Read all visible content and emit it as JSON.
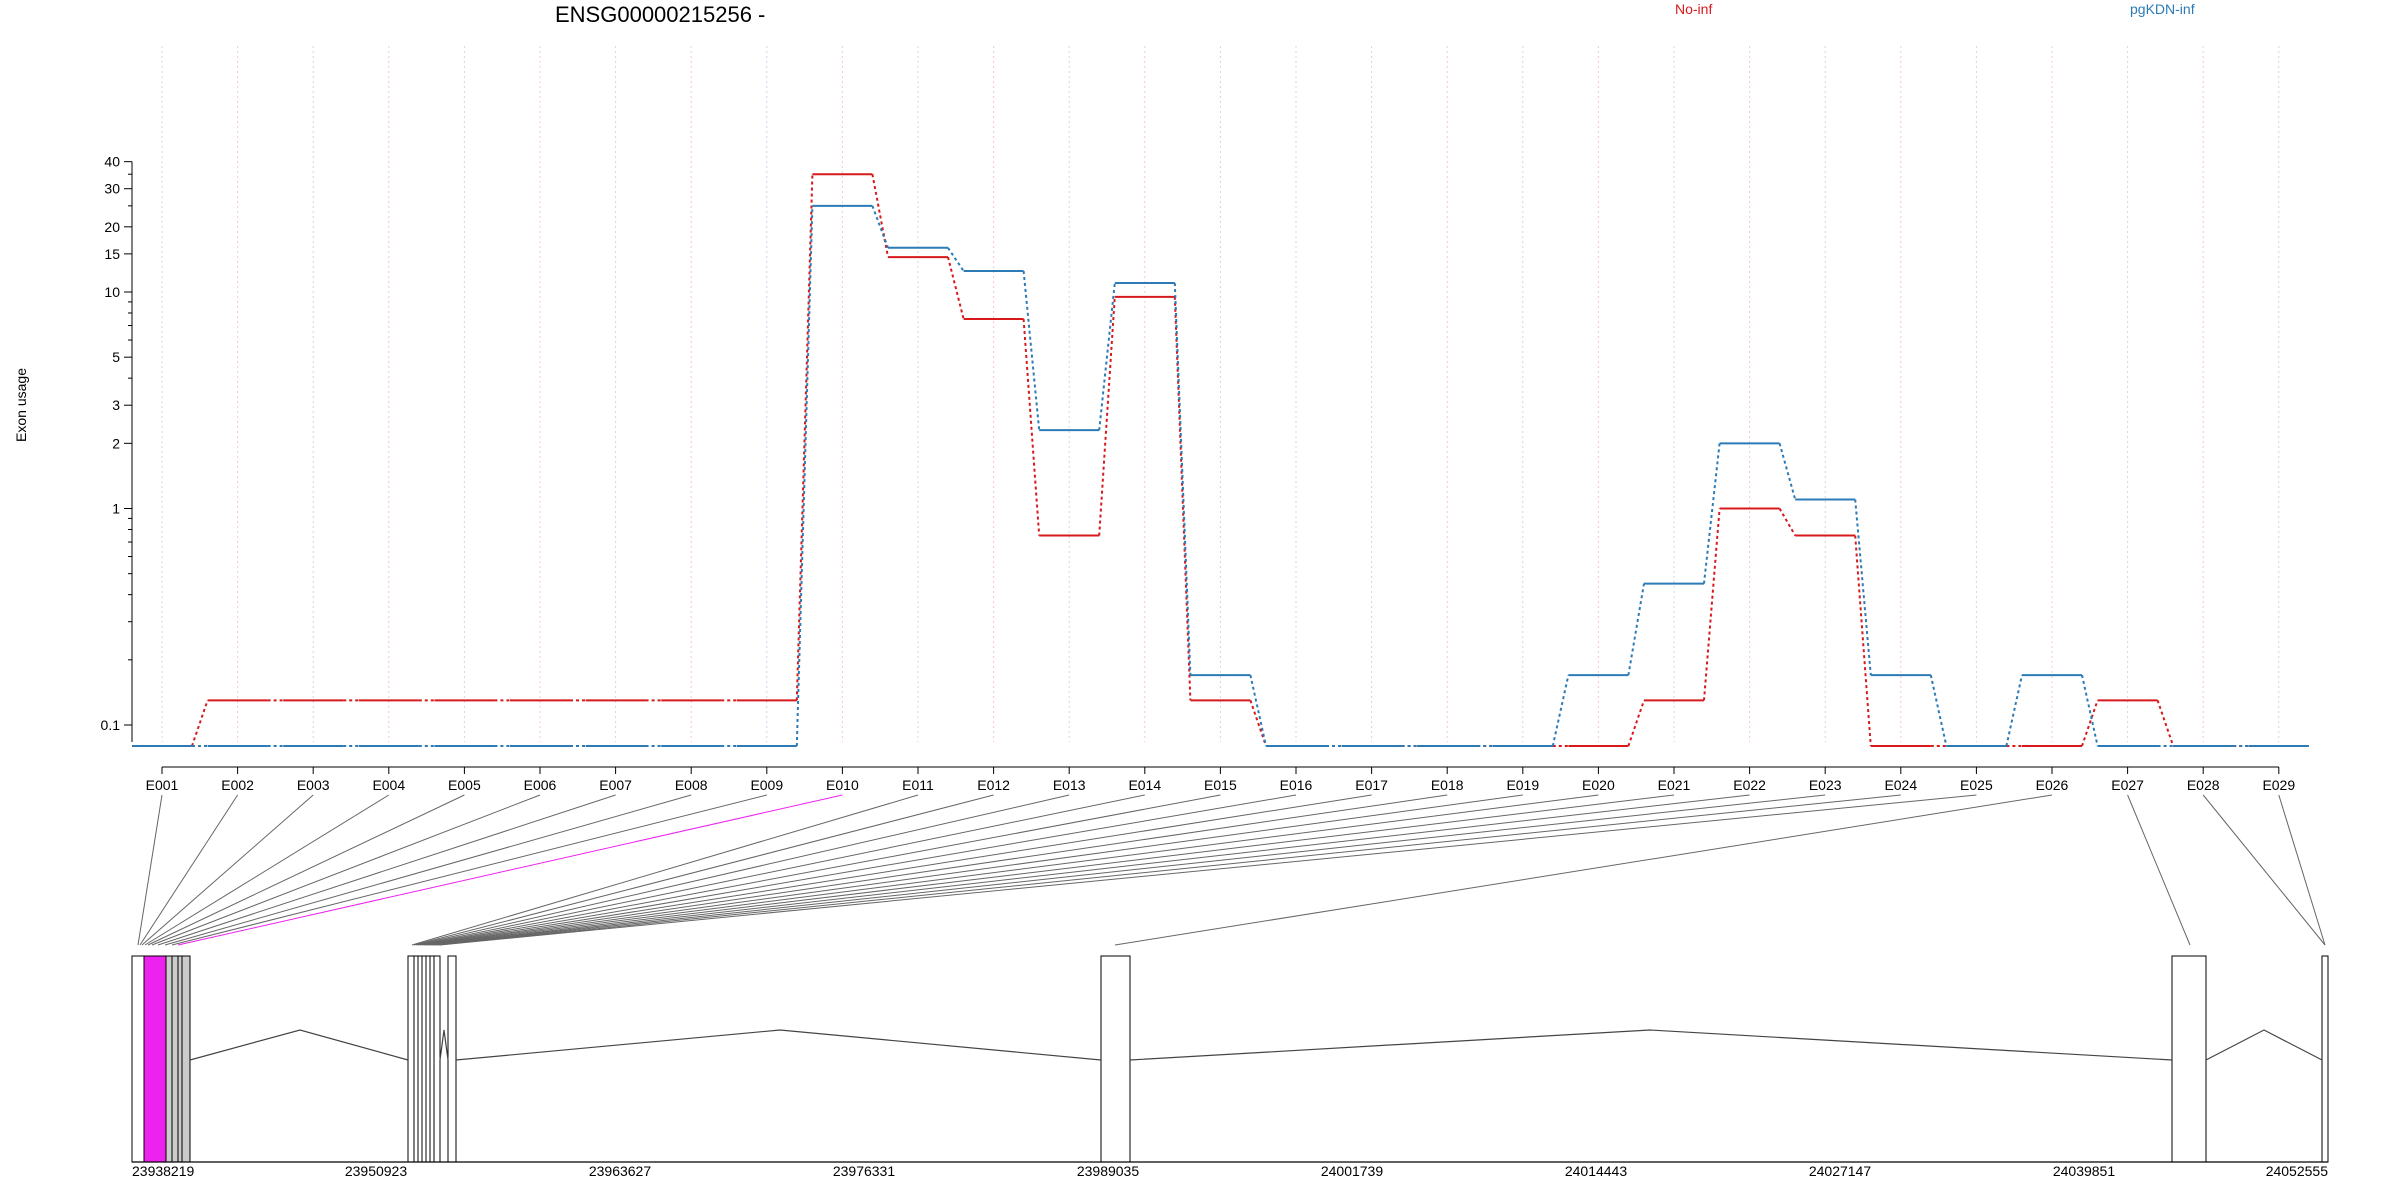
{
  "chart_data": {
    "type": "line",
    "title": "ENSG00000215256 -",
    "ylabel": "Exon usage",
    "y_scale": "log",
    "ylim": [
      0.07,
      40
    ],
    "y_ticks": [
      0.1,
      1,
      2,
      3,
      5,
      10,
      15,
      20,
      30,
      40
    ],
    "grid": "vertical dotted per exon",
    "legend": "top",
    "categories": [
      "E001",
      "E002",
      "E003",
      "E004",
      "E005",
      "E006",
      "E007",
      "E008",
      "E009",
      "E010",
      "E011",
      "E012",
      "E013",
      "E014",
      "E015",
      "E016",
      "E017",
      "E018",
      "E019",
      "E020",
      "E021",
      "E022",
      "E023",
      "E024",
      "E025",
      "E026",
      "E027",
      "E028",
      "E029"
    ],
    "series": [
      {
        "name": "No-inf",
        "color": "#d7191c",
        "values": [
          0.08,
          0.13,
          0.13,
          0.13,
          0.13,
          0.13,
          0.13,
          0.13,
          0.13,
          35,
          14.5,
          7.5,
          0.75,
          9.5,
          0.13,
          0.08,
          0.08,
          0.08,
          0.08,
          0.08,
          0.13,
          1.0,
          0.75,
          0.08,
          0.08,
          0.08,
          0.13,
          0.08,
          0.08
        ]
      },
      {
        "name": "pgKDN-inf",
        "color": "#2c7bb6",
        "values": [
          0.08,
          0.08,
          0.08,
          0.08,
          0.08,
          0.08,
          0.08,
          0.08,
          0.08,
          25,
          16,
          12.5,
          2.3,
          11,
          0.17,
          0.08,
          0.08,
          0.08,
          0.08,
          0.17,
          0.45,
          2.0,
          1.1,
          0.17,
          0.08,
          0.17,
          0.08,
          0.08,
          0.08
        ]
      }
    ],
    "gene_model": {
      "coord_ticks": [
        "23938219",
        "23950923",
        "23963627",
        "23976331",
        "23989035",
        "24001739",
        "24014443",
        "24027147",
        "24039851",
        "24052555"
      ],
      "highlight_color": "#ee22ee"
    }
  }
}
